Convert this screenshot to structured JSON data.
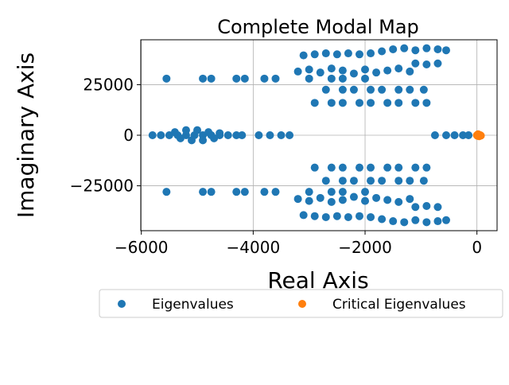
{
  "chart_data": {
    "type": "scatter",
    "title": "Complete Modal Map",
    "xlabel": "Real Axis",
    "ylabel": "Imaginary Axis",
    "xlim": [
      -6010,
      360
    ],
    "ylim": [
      -47200,
      47200
    ],
    "xticks": [
      {
        "value": -6000,
        "label": "−6000"
      },
      {
        "value": -4000,
        "label": "−4000"
      },
      {
        "value": -2000,
        "label": "−2000"
      },
      0
    ],
    "yticks": [
      {
        "value": -25000,
        "label": "−25000"
      },
      0,
      25000
    ],
    "grid": true,
    "legend": "lower center",
    "series": [
      {
        "name": "Eigenvalues",
        "color": "#1f77b4",
        "x": [
          -5550,
          -4900,
          -4750,
          -4300,
          -4150,
          -3800,
          -3600,
          -3000,
          -2600,
          -2400,
          -2000,
          -3200,
          -3000,
          -2800,
          -2600,
          -2400,
          -2200,
          -2000,
          -1800,
          -1600,
          -1400,
          -1200,
          -3100,
          -2900,
          -2700,
          -2500,
          -2300,
          -2100,
          -1900,
          -1700,
          -1500,
          -1300,
          -1100,
          -900,
          -700,
          -550,
          -1100,
          -900,
          -700,
          -2700,
          -2400,
          -2200,
          -1900,
          -1700,
          -1400,
          -1200,
          -950,
          -2900,
          -2600,
          -2400,
          -2100,
          -1900,
          -1600,
          -1400,
          -1100,
          -900,
          -5550,
          -4900,
          -4750,
          -4300,
          -4150,
          -3800,
          -3600,
          -3000,
          -2600,
          -2400,
          -2000,
          -3200,
          -3000,
          -2800,
          -2600,
          -2400,
          -2200,
          -2000,
          -1800,
          -1600,
          -1400,
          -1200,
          -3100,
          -2900,
          -2700,
          -2500,
          -2300,
          -2100,
          -1900,
          -1700,
          -1500,
          -1300,
          -1100,
          -900,
          -700,
          -550,
          -1100,
          -900,
          -700,
          -2700,
          -2400,
          -2200,
          -1900,
          -1700,
          -1400,
          -1200,
          -950,
          -2900,
          -2600,
          -2400,
          -2100,
          -1900,
          -1600,
          -1400,
          -1100,
          -900,
          -5800,
          -5650,
          -5500,
          -5350,
          -5200,
          -5050,
          -4900,
          -4750,
          -4600,
          -4450,
          -4300,
          -4200,
          -5400,
          -5200,
          -5000,
          -4800,
          -4600,
          -5300,
          -5100,
          -4900,
          -4700,
          -3900,
          -3700,
          -3500,
          -3350,
          -750,
          -550,
          -400,
          -250,
          -150
        ],
        "values": [
          28000,
          28000,
          28000,
          28000,
          28000,
          28000,
          28000,
          28000,
          28000,
          28000,
          28000,
          31500,
          32500,
          31000,
          33000,
          32000,
          30500,
          32500,
          31000,
          32000,
          33000,
          31500,
          39500,
          40000,
          40500,
          40000,
          40500,
          40000,
          40500,
          41500,
          42500,
          43000,
          42000,
          43000,
          42500,
          42000,
          35500,
          35000,
          35500,
          22500,
          22500,
          22500,
          22500,
          22500,
          22500,
          22500,
          22500,
          16000,
          16000,
          16000,
          16000,
          16000,
          16000,
          16000,
          16000,
          16000,
          -28000,
          -28000,
          -28000,
          -28000,
          -28000,
          -28000,
          -28000,
          -28000,
          -28000,
          -28000,
          -28000,
          -31500,
          -32500,
          -31000,
          -33000,
          -32000,
          -30500,
          -32500,
          -31000,
          -32000,
          -33000,
          -31500,
          -39500,
          -40000,
          -40500,
          -40000,
          -40500,
          -40000,
          -40500,
          -41500,
          -42500,
          -43000,
          -42000,
          -43000,
          -42500,
          -42000,
          -35500,
          -35000,
          -35500,
          -22500,
          -22500,
          -22500,
          -22500,
          -22500,
          -22500,
          -22500,
          -22500,
          -16000,
          -16000,
          -16000,
          -16000,
          -16000,
          -16000,
          -16000,
          -16000,
          -16000,
          0,
          0,
          0,
          0,
          0,
          0,
          0,
          0,
          0,
          0,
          0,
          0,
          1500,
          2500,
          2500,
          1500,
          1000,
          -1500,
          -2500,
          -2500,
          -1500,
          0,
          0,
          0,
          0,
          0,
          0,
          0,
          0,
          0
        ]
      },
      {
        "name": "Critical Eigenvalues",
        "color": "#ff7f0e",
        "x": [
          0,
          20,
          40,
          60,
          10,
          30,
          50,
          70
        ],
        "values": [
          0,
          500,
          -500,
          0,
          -300,
          300,
          0,
          -200
        ]
      }
    ]
  }
}
